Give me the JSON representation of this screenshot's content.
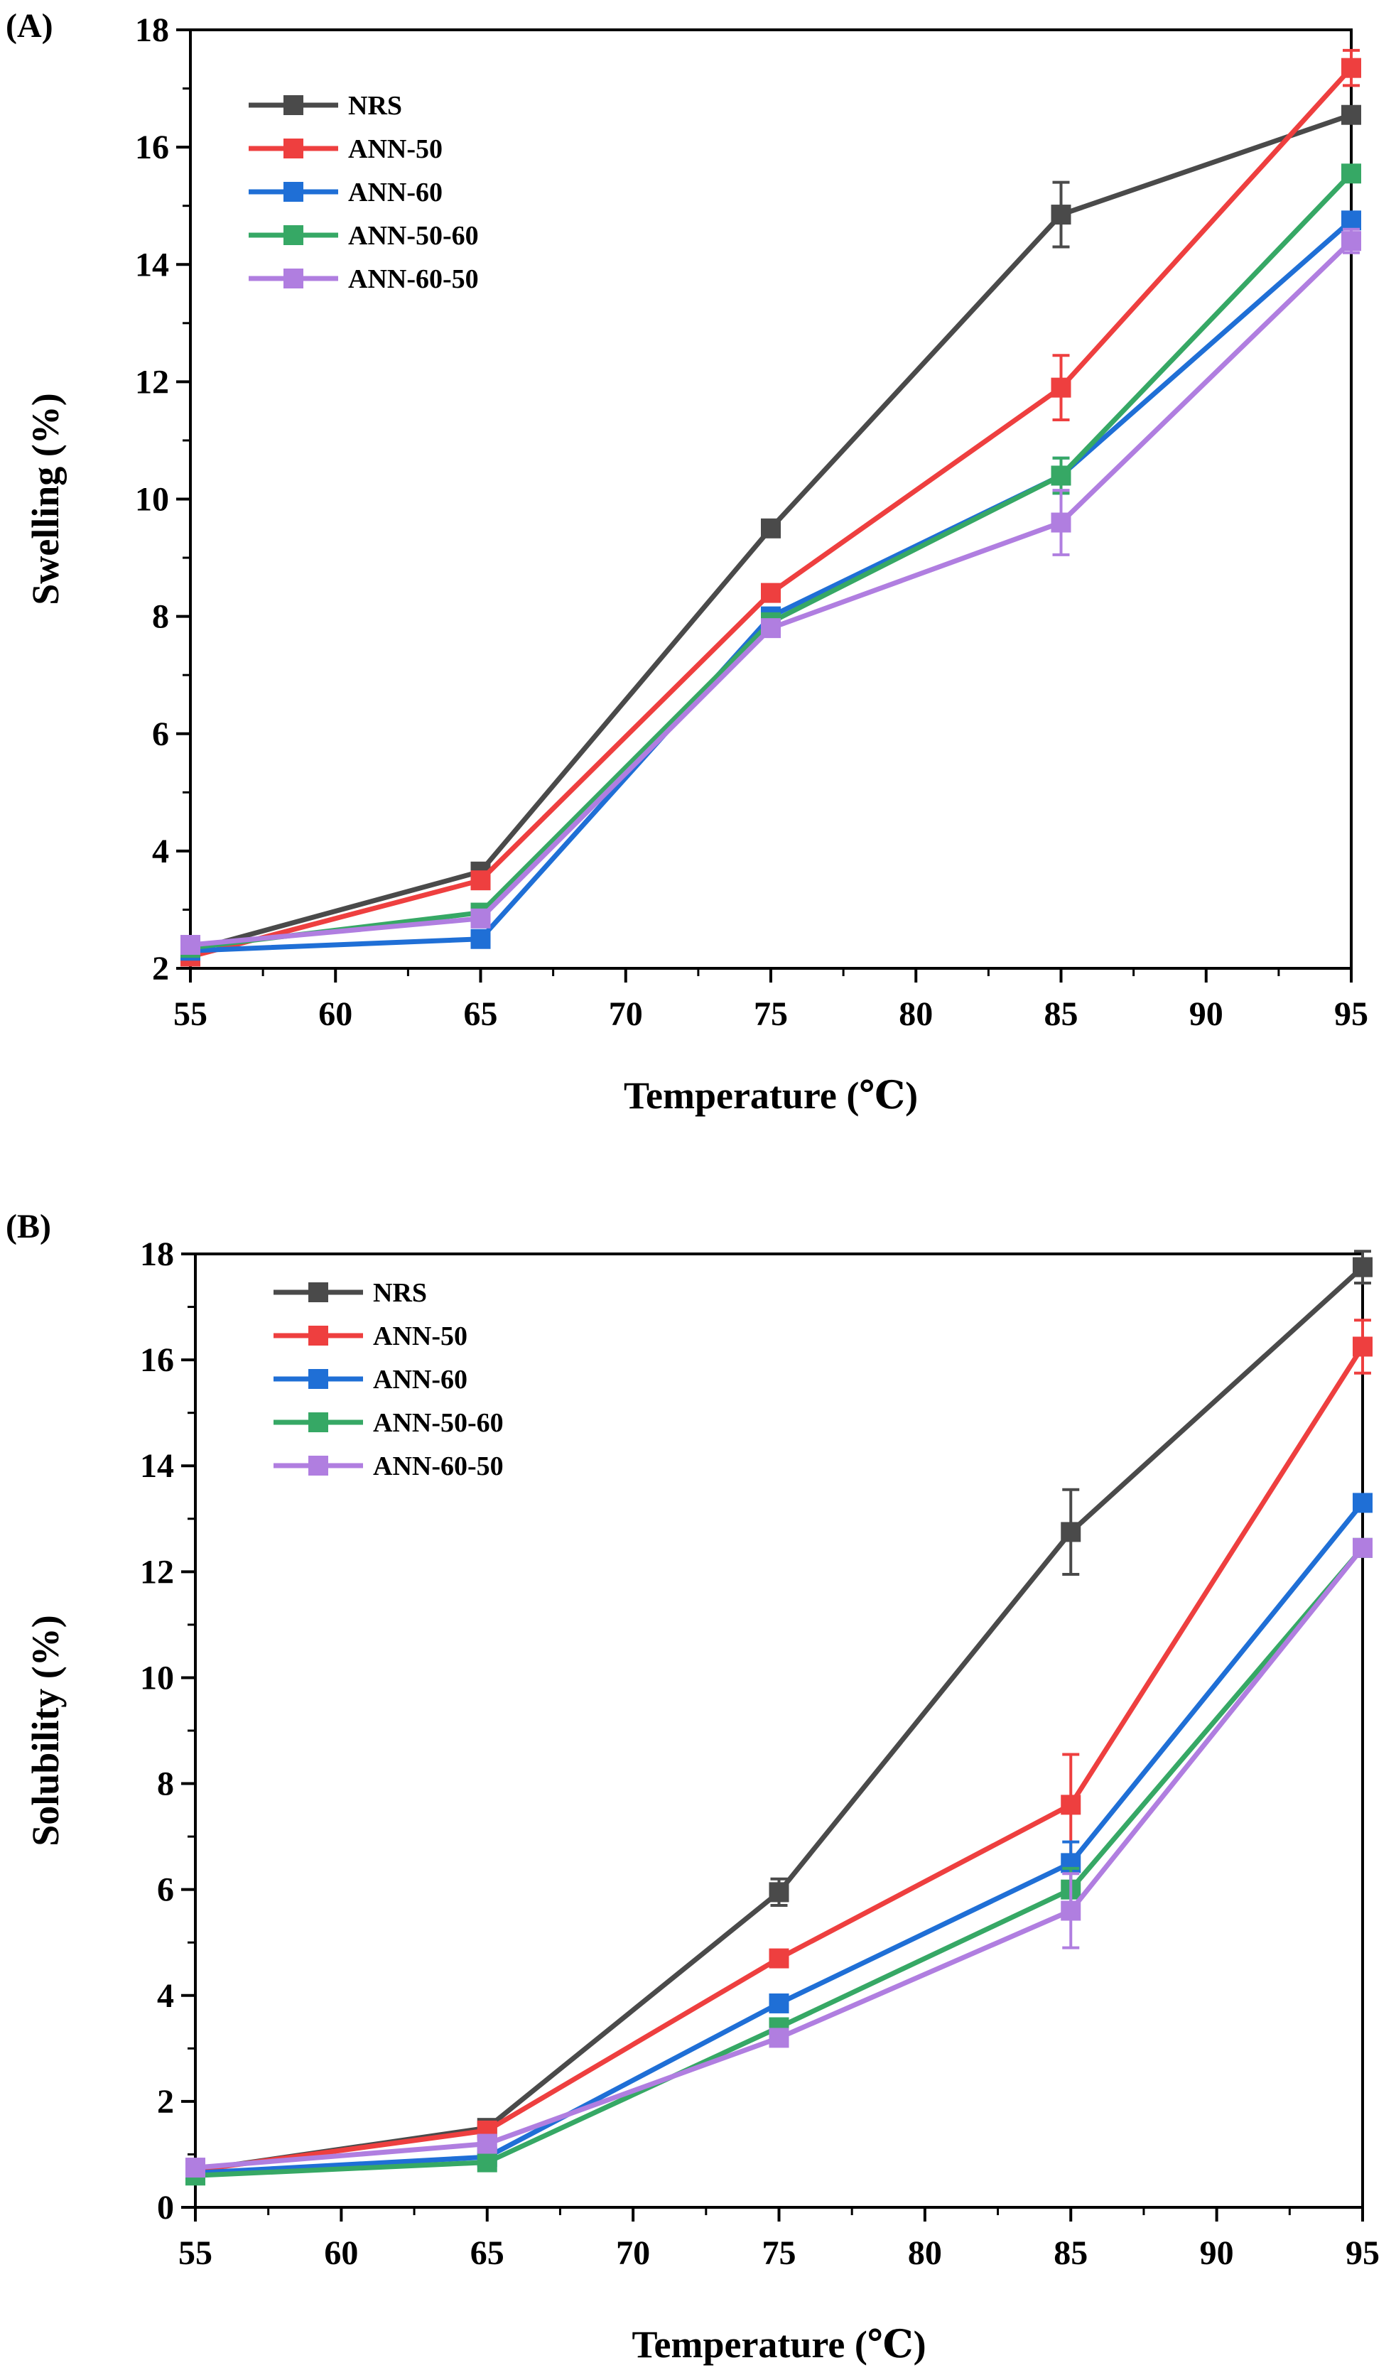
{
  "chart_data": [
    {
      "panel_label": "(A)",
      "type": "line",
      "xlabel": "Temperature (℃)",
      "ylabel": "Swelling (%)",
      "xlim": [
        55,
        95
      ],
      "ylim": [
        2,
        18
      ],
      "x_ticks": [
        55,
        60,
        65,
        70,
        75,
        80,
        85,
        90,
        95
      ],
      "y_ticks": [
        2,
        4,
        6,
        8,
        10,
        12,
        14,
        16,
        18
      ],
      "x": [
        55,
        65,
        75,
        85,
        95
      ],
      "legend_position": "top-left",
      "series": [
        {
          "name": "NRS",
          "color": "#4a4a4a",
          "values": [
            2.3,
            3.65,
            9.5,
            14.85,
            16.55
          ],
          "errors": [
            0.05,
            0.1,
            0.1,
            0.55,
            0.1
          ]
        },
        {
          "name": "ANN-50",
          "color": "#ee3f3f",
          "values": [
            2.2,
            3.5,
            8.4,
            11.9,
            17.35
          ],
          "errors": [
            0.05,
            0.1,
            0.1,
            0.55,
            0.3
          ]
        },
        {
          "name": "ANN-60",
          "color": "#1f6fd6",
          "values": [
            2.3,
            2.5,
            8.0,
            10.4,
            14.75
          ],
          "errors": [
            0.05,
            0.1,
            0.1,
            0.3,
            0.1
          ]
        },
        {
          "name": "ANN-50-60",
          "color": "#36a865",
          "values": [
            2.35,
            2.95,
            7.9,
            10.4,
            15.55
          ],
          "errors": [
            0.05,
            0.1,
            0.1,
            0.3,
            0.1
          ]
        },
        {
          "name": "ANN-60-50",
          "color": "#b07ee0",
          "values": [
            2.4,
            2.85,
            7.8,
            9.6,
            14.4
          ],
          "errors": [
            0.1,
            0.1,
            0.1,
            0.55,
            0.2
          ]
        }
      ]
    },
    {
      "panel_label": "(B)",
      "type": "line",
      "xlabel": "Temperature (℃)",
      "ylabel": "Solubility (%)",
      "xlim": [
        55,
        95
      ],
      "ylim": [
        0,
        18
      ],
      "x_ticks": [
        55,
        60,
        65,
        70,
        75,
        80,
        85,
        90,
        95
      ],
      "y_ticks": [
        0,
        2,
        4,
        6,
        8,
        10,
        12,
        14,
        16,
        18
      ],
      "x": [
        55,
        65,
        75,
        85,
        95
      ],
      "legend_position": "top-left",
      "series": [
        {
          "name": "NRS",
          "color": "#4a4a4a",
          "values": [
            0.7,
            1.5,
            5.95,
            12.75,
            17.75
          ],
          "errors": [
            0.05,
            0.1,
            0.25,
            0.8,
            0.3
          ]
        },
        {
          "name": "ANN-50",
          "color": "#ee3f3f",
          "values": [
            0.7,
            1.45,
            4.7,
            7.6,
            16.25
          ],
          "errors": [
            0.05,
            0.1,
            0.1,
            0.95,
            0.5
          ]
        },
        {
          "name": "ANN-60",
          "color": "#1f6fd6",
          "values": [
            0.65,
            0.95,
            3.85,
            6.5,
            13.3
          ],
          "errors": [
            0.05,
            0.1,
            0.1,
            0.4,
            0.1
          ]
        },
        {
          "name": "ANN-50-60",
          "color": "#36a865",
          "values": [
            0.6,
            0.85,
            3.4,
            6.0,
            12.45
          ],
          "errors": [
            0.05,
            0.1,
            0.1,
            0.4,
            0.1
          ]
        },
        {
          "name": "ANN-60-50",
          "color": "#b07ee0",
          "values": [
            0.75,
            1.2,
            3.2,
            5.6,
            12.45
          ],
          "errors": [
            0.05,
            0.1,
            0.1,
            0.7,
            0.1
          ]
        }
      ]
    }
  ]
}
